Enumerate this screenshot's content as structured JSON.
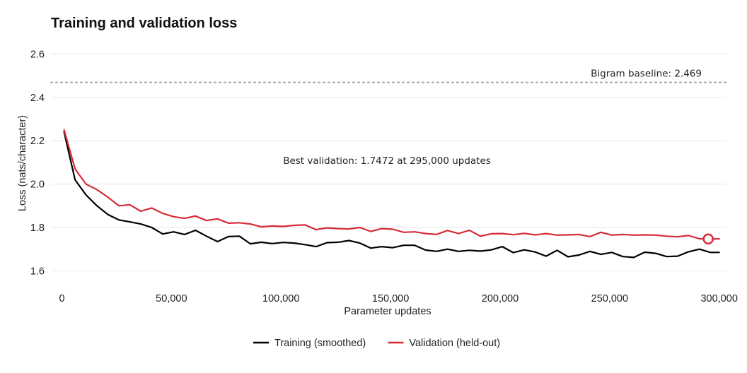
{
  "chart_data": {
    "type": "line",
    "title": "Training and validation loss",
    "xlabel": "Parameter updates",
    "ylabel": "Loss (nats/character)",
    "xlim": [
      -5000,
      303000
    ],
    "ylim": [
      1.52,
      2.66
    ],
    "x_ticks": [
      0,
      50000,
      100000,
      150000,
      200000,
      250000,
      300000
    ],
    "x_tick_labels": [
      "0",
      "50,000",
      "100,000",
      "150,000",
      "200,000",
      "250,000",
      "300,000"
    ],
    "y_ticks": [
      1.6,
      1.8,
      2.0,
      2.2,
      2.4,
      2.6
    ],
    "y_tick_labels": [
      "1.6",
      "1.8",
      "2.0",
      "2.2",
      "2.4",
      "2.6"
    ],
    "grid": "horizontal",
    "legend_position": "bottom",
    "x": [
      1000,
      6000,
      11000,
      16000,
      21000,
      26000,
      31000,
      36000,
      41000,
      46000,
      51000,
      56000,
      61000,
      66000,
      71000,
      76000,
      81000,
      86000,
      91000,
      96000,
      101000,
      106000,
      111000,
      116000,
      121000,
      126000,
      131000,
      136000,
      141000,
      146000,
      151000,
      156000,
      161000,
      166000,
      171000,
      176000,
      181000,
      186000,
      191000,
      196000,
      201000,
      206000,
      211000,
      216000,
      221000,
      226000,
      231000,
      236000,
      241000,
      246000,
      251000,
      256000,
      261000,
      266000,
      271000,
      276000,
      281000,
      286000,
      291000,
      296000,
      300000
    ],
    "series": [
      {
        "name": "Training (smoothed)",
        "color": "#000000",
        "values": [
          2.24,
          2.02,
          1.95,
          1.9,
          1.86,
          1.835,
          1.826,
          1.816,
          1.8,
          1.77,
          1.78,
          1.768,
          1.787,
          1.76,
          1.735,
          1.758,
          1.76,
          1.725,
          1.732,
          1.726,
          1.731,
          1.728,
          1.721,
          1.712,
          1.73,
          1.732,
          1.74,
          1.728,
          1.705,
          1.712,
          1.707,
          1.718,
          1.718,
          1.696,
          1.69,
          1.7,
          1.69,
          1.695,
          1.691,
          1.697,
          1.712,
          1.684,
          1.697,
          1.687,
          1.668,
          1.695,
          1.665,
          1.673,
          1.69,
          1.676,
          1.685,
          1.666,
          1.662,
          1.686,
          1.681,
          1.666,
          1.668,
          1.688,
          1.7,
          1.685,
          1.685
        ]
      },
      {
        "name": "Validation (held-out)",
        "color": "#d62b35",
        "values": [
          2.25,
          2.07,
          2.0,
          1.975,
          1.94,
          1.9,
          1.905,
          1.875,
          1.89,
          1.865,
          1.85,
          1.842,
          1.853,
          1.832,
          1.84,
          1.82,
          1.822,
          1.816,
          1.803,
          1.807,
          1.805,
          1.81,
          1.812,
          1.79,
          1.798,
          1.795,
          1.793,
          1.8,
          1.782,
          1.795,
          1.792,
          1.778,
          1.78,
          1.772,
          1.768,
          1.786,
          1.772,
          1.787,
          1.76,
          1.771,
          1.772,
          1.767,
          1.773,
          1.766,
          1.772,
          1.765,
          1.766,
          1.768,
          1.758,
          1.778,
          1.765,
          1.768,
          1.765,
          1.766,
          1.765,
          1.76,
          1.757,
          1.763,
          1.748,
          1.747,
          1.748
        ]
      }
    ],
    "baseline": {
      "label": "Bigram baseline: 2.469",
      "value": 2.469,
      "color": "#aaaaaa"
    },
    "best_point": {
      "label": "Best validation: 1.7472 at 295,000 updates",
      "x": 295000,
      "y": 1.7472,
      "color": "#d62b35"
    }
  }
}
